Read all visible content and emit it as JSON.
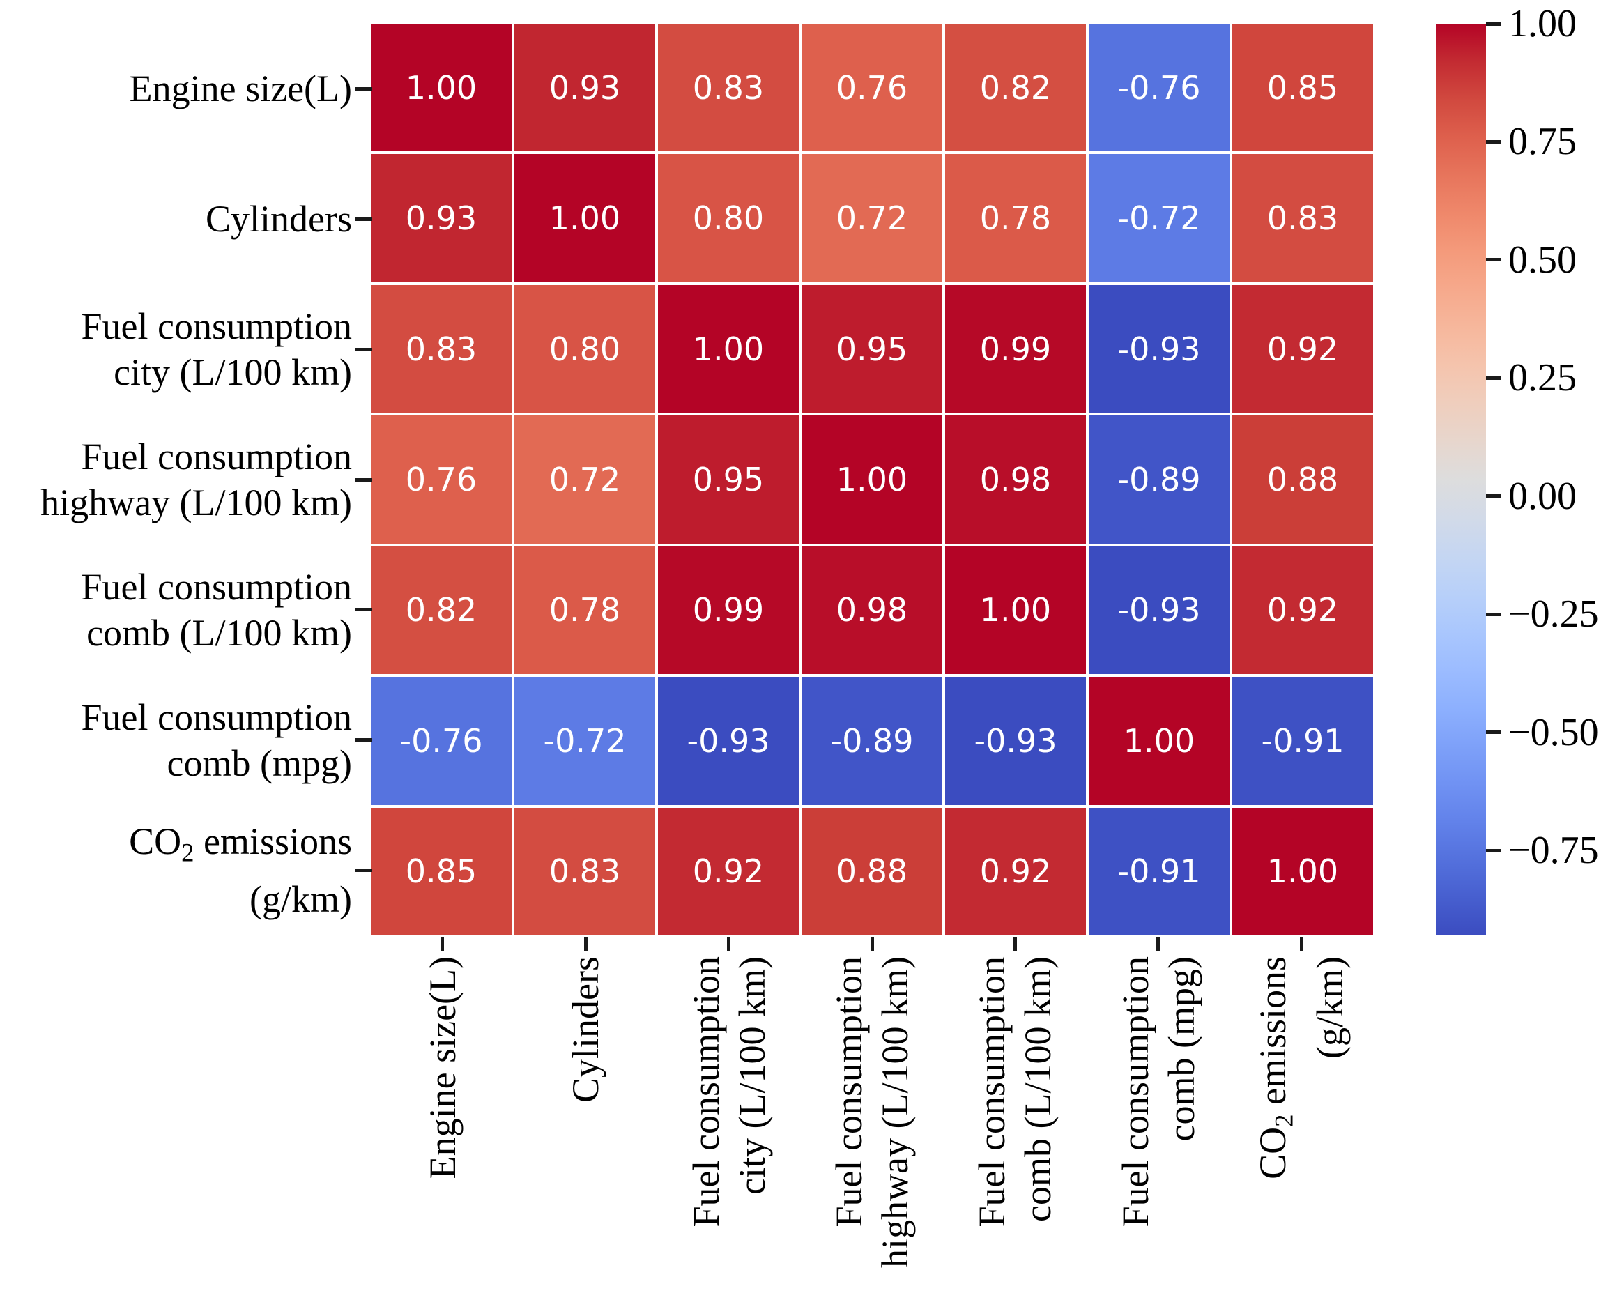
{
  "chart_data": {
    "type": "heatmap",
    "title": "",
    "colormap": "coolwarm",
    "vmin": -0.93,
    "vmax": 1.0,
    "grid": true,
    "legend_position": "right-colorbar",
    "variables": [
      {
        "lines": [
          "Engine size(L)"
        ]
      },
      {
        "lines": [
          "Cylinders"
        ]
      },
      {
        "lines": [
          "Fuel consumption",
          "city (L/100 km)"
        ]
      },
      {
        "lines": [
          "Fuel consumption",
          "highway (L/100 km)"
        ]
      },
      {
        "lines": [
          "Fuel consumption",
          "comb (L/100 km)"
        ]
      },
      {
        "lines": [
          "Fuel consumption",
          "comb (mpg)"
        ]
      },
      {
        "lines": [
          "CO₂ emissions",
          "(g/km)"
        ]
      }
    ],
    "matrix": [
      [
        1.0,
        0.93,
        0.83,
        0.76,
        0.82,
        -0.76,
        0.85
      ],
      [
        0.93,
        1.0,
        0.8,
        0.72,
        0.78,
        -0.72,
        0.83
      ],
      [
        0.83,
        0.8,
        1.0,
        0.95,
        0.99,
        -0.93,
        0.92
      ],
      [
        0.76,
        0.72,
        0.95,
        1.0,
        0.98,
        -0.89,
        0.88
      ],
      [
        0.82,
        0.78,
        0.99,
        0.98,
        1.0,
        -0.93,
        0.92
      ],
      [
        -0.76,
        -0.72,
        -0.93,
        -0.89,
        -0.93,
        1.0,
        -0.91
      ],
      [
        0.85,
        0.83,
        0.92,
        0.88,
        0.92,
        -0.91,
        1.0
      ]
    ],
    "annotation_decimals": 2,
    "cell_text_color": "#ffffff",
    "tick_color": "#1a1a1a",
    "label_color": "#000000",
    "colorbar": {
      "tick_values": [
        1.0,
        0.75,
        0.5,
        0.25,
        0.0,
        -0.25,
        -0.5,
        -0.75
      ],
      "tick_labels": [
        "1.00",
        "0.75",
        "0.50",
        "0.25",
        "0.00",
        "−0.25",
        "−0.50",
        "−0.75"
      ]
    }
  }
}
